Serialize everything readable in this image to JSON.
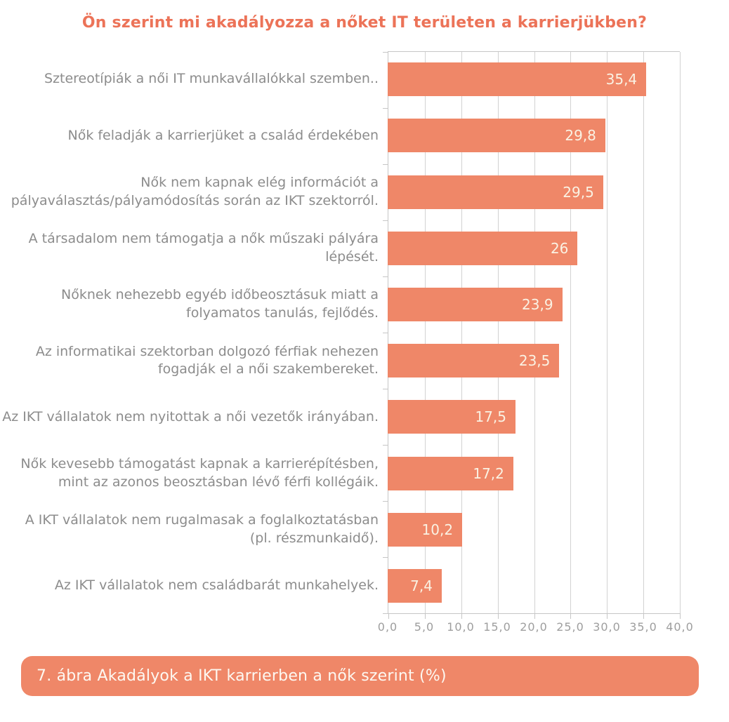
{
  "title": "Ön szerint mi akadályozza a nőket IT területen a karrierjükben?",
  "caption": "7. ábra Akadályok a IKT karrierben a nők szerint (%)",
  "colors": {
    "bar": "#ef8768",
    "title": "#ec7358",
    "caption_bg": "#ef8768",
    "caption_text": "#fdf8f1",
    "value_text": "#faf2e3",
    "category_label_text": "#8c8c8c",
    "axis_text": "#9e9e9e",
    "grid": "#d2d2d2",
    "axis_line": "#c6c6c6"
  },
  "chart_data": {
    "type": "bar",
    "orientation": "horizontal",
    "title": "Ön szerint mi akadályozza a nőket IT területen a karrierjükben?",
    "categories": [
      "Sztereotípiák  a női IT munkavállalókkal szemben..",
      "Nők feladják a karrierjüket a család érdekében",
      "Nők nem kapnak elég információt a pályaválasztás/pályamódosítás során az IKT szektorról.",
      "A társadalom nem támogatja a nők műszaki pályára lépését.",
      "Nőknek nehezebb egyéb időbeosztásuk miatt a folyamatos tanulás, fejlődés.",
      "Az informatikai szektorban dolgozó férfiak nehezen fogadják el a női szakembereket.",
      "Az IKT vállalatok nem nyitottak a női vezetők irányában.",
      "Nők kevesebb támogatást kapnak a karrierépítésben, mint az azonos beosztásban lévő férfi kollégáik.",
      "A IKT vállalatok nem rugalmasak a foglalkoztatásban (pl. részmunkaidő).",
      "Az IKT vállalatok nem családbarát munkahelyek."
    ],
    "values": [
      35.4,
      29.8,
      29.5,
      26,
      23.9,
      23.5,
      17.5,
      17.2,
      10.2,
      7.4
    ],
    "value_labels": [
      "35,4",
      "29,8",
      "29,5",
      "26",
      "23,9",
      "23,5",
      "17,5",
      "17,2",
      "10,2",
      "7,4"
    ],
    "xlabel": "",
    "ylabel": "",
    "xlim": [
      0,
      40
    ],
    "x_tick_values": [
      0,
      5,
      10,
      15,
      20,
      25,
      30,
      35,
      40
    ],
    "x_tick_labels": [
      "0,0",
      "5,0",
      "10,0",
      "15,0",
      "20,0",
      "25,0",
      "30,0",
      "35,0",
      "40,0"
    ],
    "grid": true,
    "legend": false,
    "units": "%"
  }
}
